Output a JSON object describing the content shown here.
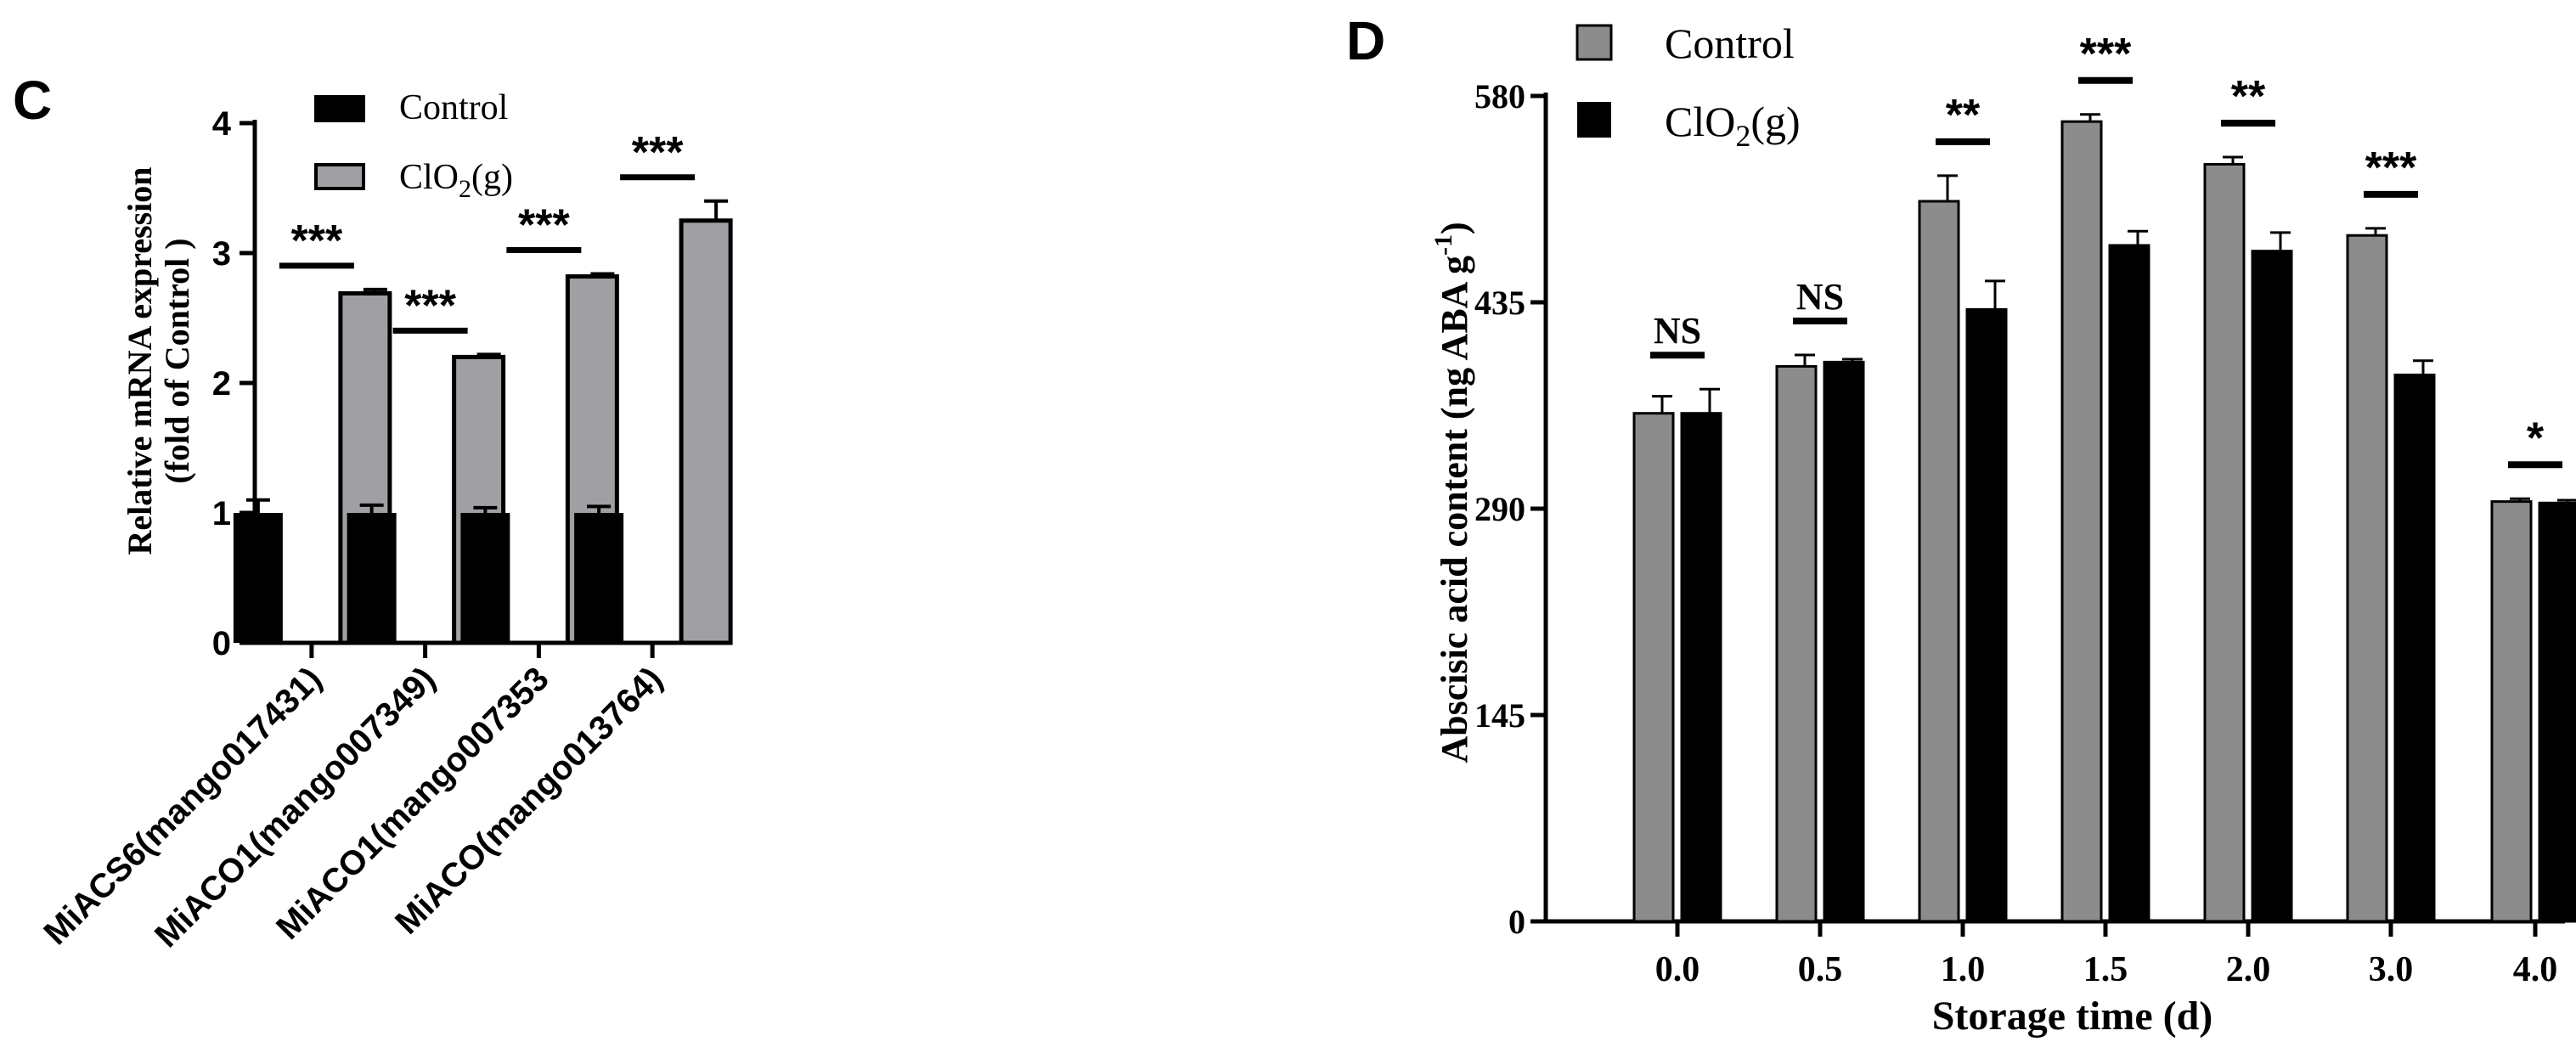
{
  "chart_data": [
    {
      "panel": "C",
      "type": "bar",
      "title": "",
      "xlabel": "",
      "ylabel_line1": "Relative mRNA expression",
      "ylabel_line2": "(fold of Control )",
      "ylim": [
        0,
        4
      ],
      "yticks": [
        "0",
        "1",
        "2",
        "3",
        "4"
      ],
      "categories": [
        "MiACS6(mango017431)",
        "MiACO1(mango007349)",
        "MiACO1(mango007353",
        "MiACO(mango013764)"
      ],
      "series": [
        {
          "name": "Control",
          "color": "#000000",
          "values": [
            1.0,
            1.0,
            1.0,
            1.0
          ],
          "errors": [
            0.1,
            0.06,
            0.04,
            0.05
          ]
        },
        {
          "name": "ClO2(g)",
          "name_prefix": "ClO",
          "name_sub": "2",
          "name_suffix": "(g)",
          "color": "#a0a0a4",
          "values": [
            2.69,
            2.2,
            2.82,
            3.25
          ],
          "errors": [
            0.03,
            0.02,
            0.02,
            0.15
          ]
        }
      ],
      "significance": [
        "***",
        "***",
        "***",
        "***"
      ],
      "legend": [
        "Control",
        "ClO2(g)"
      ],
      "legend_position": "top-left"
    },
    {
      "panel": "D",
      "type": "bar",
      "title": "",
      "xlabel": "Storage time (d)",
      "ylabel": "Abscisic acid content (ng ABA g",
      "ylabel_sup": "-1",
      "ylabel_end": ")",
      "ylim": [
        0,
        580
      ],
      "yticks": [
        "0",
        "145",
        "290",
        "435",
        "580"
      ],
      "categories": [
        "0.0",
        "0.5",
        "1.0",
        "1.5",
        "2.0",
        "3.0",
        "4.0"
      ],
      "series": [
        {
          "name": "Control",
          "color": "#8c8c8c",
          "values": [
            357,
            390,
            506,
            562,
            532,
            482,
            295
          ],
          "errors": [
            12,
            8,
            18,
            5,
            5,
            5,
            2
          ]
        },
        {
          "name": "ClO2(g)",
          "name_prefix": "ClO",
          "name_sub": "2",
          "name_suffix": "(g)",
          "color": "#000000",
          "values": [
            357,
            393,
            430,
            475,
            471,
            384,
            294
          ],
          "errors": [
            17,
            2,
            20,
            10,
            13,
            10,
            2
          ]
        }
      ],
      "significance": [
        "NS",
        "NS",
        "**",
        "***",
        "**",
        "***",
        "*"
      ],
      "legend": [
        "Control",
        "ClO2(g)"
      ],
      "legend_position": "top-left"
    }
  ]
}
